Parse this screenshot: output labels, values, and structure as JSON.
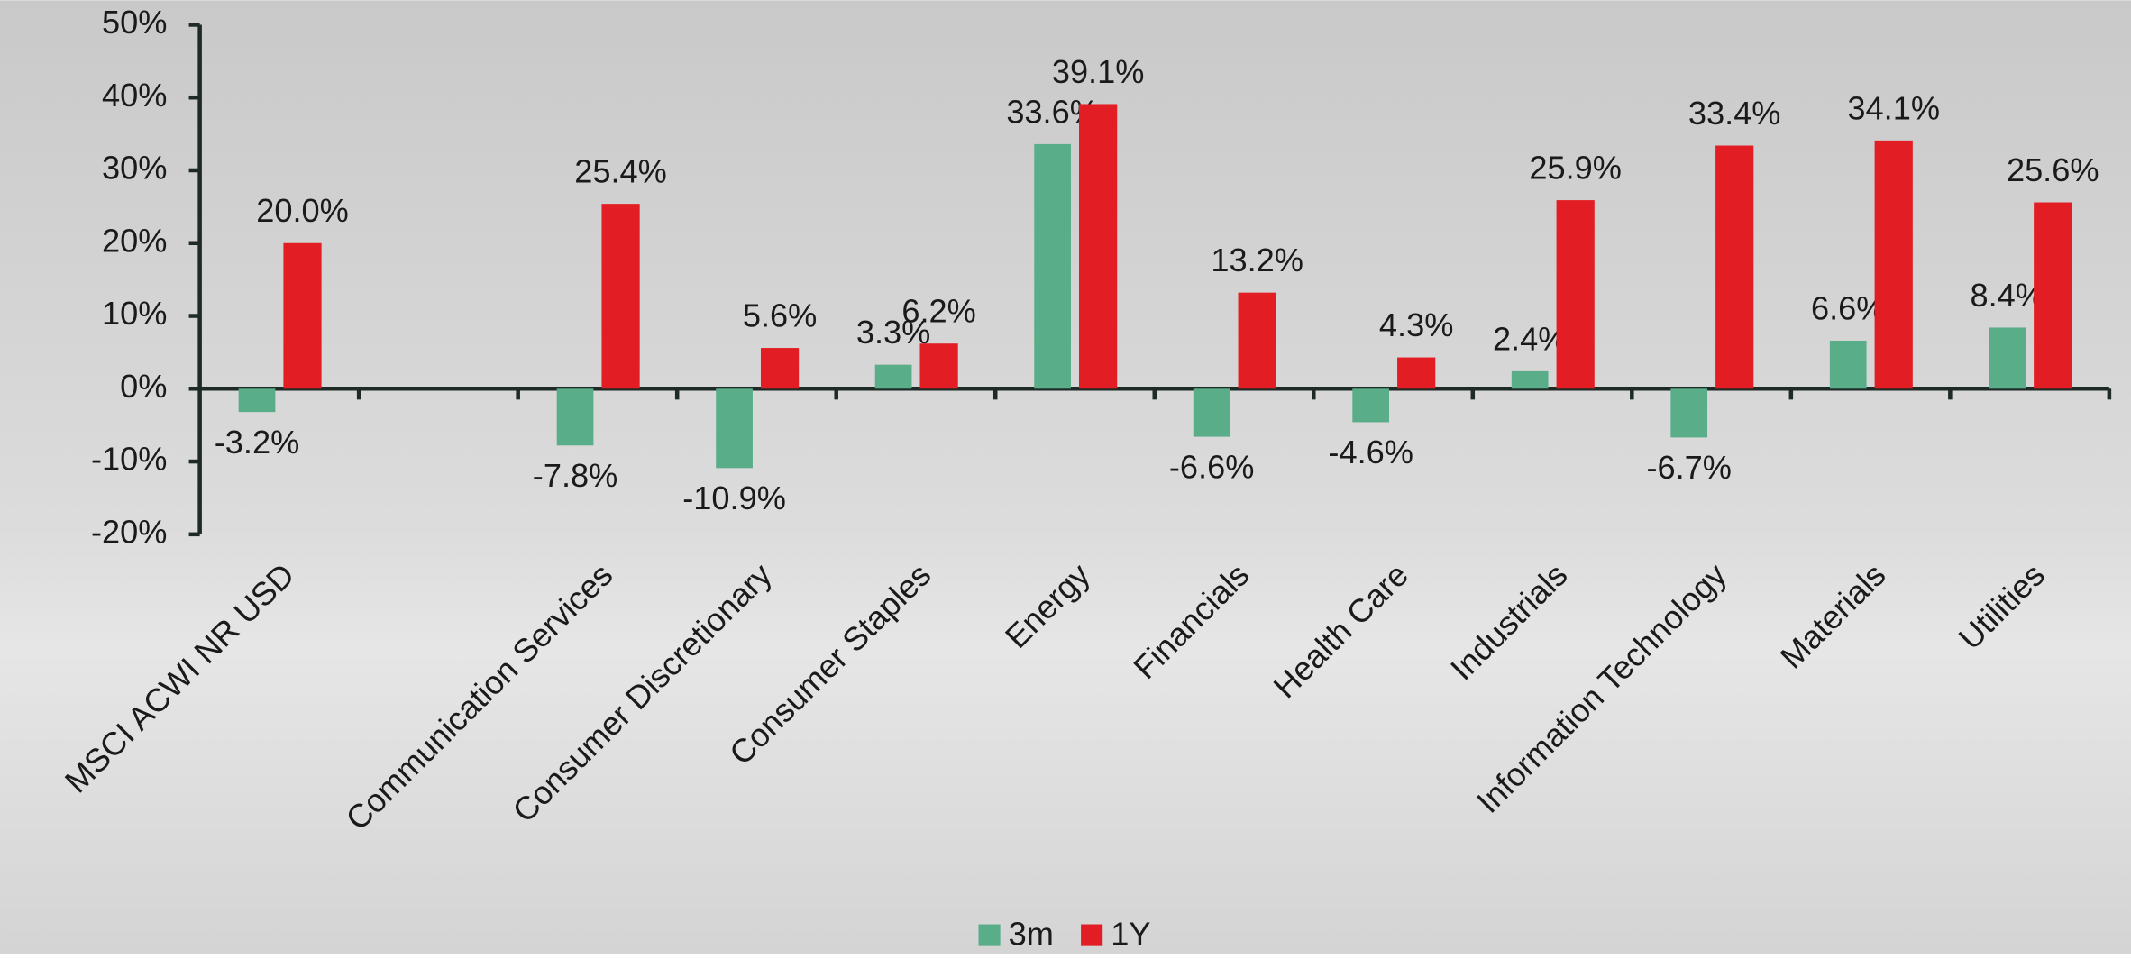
{
  "chart_data": {
    "type": "bar",
    "categories": [
      "MSCI ACWI NR USD",
      null,
      "Communication Services",
      "Consumer Discretionary",
      "Consumer Staples",
      "Energy",
      "Financials",
      "Health Care",
      "Industrials",
      "Information Technology",
      "Materials",
      "Utilities"
    ],
    "series": [
      {
        "name": "3m",
        "color": "#5aad89",
        "values": [
          -3.2,
          null,
          -7.8,
          -10.9,
          3.3,
          33.6,
          -6.6,
          -4.6,
          2.4,
          -6.7,
          6.6,
          8.4
        ],
        "value_labels": [
          "-3.2%",
          null,
          "-7.8%",
          "-10.9%",
          "3.3%",
          "33.6%",
          "-6.6%",
          "-4.6%",
          "2.4%",
          "-6.7%",
          "6.6%",
          "8.4%"
        ]
      },
      {
        "name": "1Y",
        "color": "#e31d24",
        "values": [
          20.0,
          null,
          25.4,
          5.6,
          6.2,
          39.1,
          13.2,
          4.3,
          25.9,
          33.4,
          34.1,
          25.6
        ],
        "value_labels": [
          "20.0%",
          null,
          "25.4%",
          "5.6%",
          "6.2%",
          "39.1%",
          "13.2%",
          "4.3%",
          "25.9%",
          "33.4%",
          "34.1%",
          "25.6%"
        ]
      }
    ],
    "ylim": [
      -20,
      50
    ],
    "yticks": [
      {
        "value": -20,
        "label": "-20%"
      },
      {
        "value": -10,
        "label": "-10%"
      },
      {
        "value": 0,
        "label": "0%"
      },
      {
        "value": 10,
        "label": "10%"
      },
      {
        "value": 20,
        "label": "20%"
      },
      {
        "value": 30,
        "label": "30%"
      },
      {
        "value": 40,
        "label": "40%"
      },
      {
        "value": 50,
        "label": "50%"
      }
    ],
    "legend": "bottom"
  }
}
